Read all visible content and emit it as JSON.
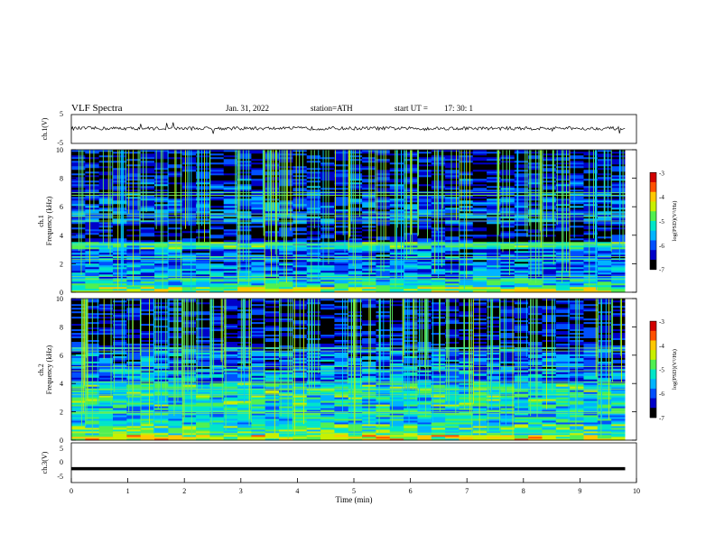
{
  "header": {
    "title": "VLF  Spectra",
    "date": "Jan. 31, 2022",
    "station": "station=ATH",
    "start_label": "start  UT  =",
    "start_time": "17: 30: 1"
  },
  "chart_data": [
    {
      "type": "line",
      "name": "ch1-waveform",
      "ylabel": "ch.1(V)",
      "ylim": [
        -5,
        5
      ],
      "xlim": [
        0,
        10
      ],
      "yticks": [
        "5",
        "-5"
      ],
      "baseline": 0.2,
      "amplitude": 0.6,
      "x": [
        0,
        1,
        2,
        3,
        4,
        5,
        6,
        7,
        8,
        9,
        9.8
      ],
      "y": [
        0.3,
        0.2,
        0.1,
        0.2,
        0.3,
        0.2,
        0.1,
        0.2,
        0.2,
        0.1,
        0.3
      ]
    },
    {
      "type": "heatmap",
      "name": "ch1-spectrogram",
      "ylabel": "ch.1\nFrequency  (kHz)",
      "ylim": [
        0,
        10
      ],
      "xlim": [
        0,
        10
      ],
      "data_xmax": 9.8,
      "yticks": [
        "0",
        "2",
        "4",
        "6",
        "8",
        "10"
      ],
      "colorbar": {
        "label": "log(PSD)(V²/Hz)",
        "range": [
          -7,
          -3
        ],
        "ticks": [
          "-3",
          "-4",
          "-5",
          "-6",
          "-7"
        ]
      },
      "bands": [
        {
          "f0": 0.0,
          "f1": 0.4,
          "level": -4.6
        },
        {
          "f0": 0.4,
          "f1": 1.0,
          "level": -5.3
        },
        {
          "f0": 1.0,
          "f1": 2.0,
          "level": -5.8
        },
        {
          "f0": 2.0,
          "f1": 3.0,
          "level": -6.0
        },
        {
          "f0": 3.0,
          "f1": 3.6,
          "level": -5.2
        },
        {
          "f0": 3.6,
          "f1": 4.8,
          "level": -6.6
        },
        {
          "f0": 4.8,
          "f1": 6.6,
          "level": -6.1
        },
        {
          "f0": 6.6,
          "f1": 8.0,
          "level": -6.4
        },
        {
          "f0": 8.0,
          "f1": 10.0,
          "level": -6.5
        }
      ],
      "lines_khz": [
        0.9,
        1.1,
        2.3,
        2.5,
        3.3,
        3.4,
        5.0,
        5.3,
        5.5,
        6.8,
        7.0
      ]
    },
    {
      "type": "heatmap",
      "name": "ch2-spectrogram",
      "ylabel": "ch.2\nFrequency  (kHz)",
      "ylim": [
        0,
        10
      ],
      "xlim": [
        0,
        10
      ],
      "data_xmax": 9.8,
      "yticks": [
        "0",
        "2",
        "4",
        "6",
        "8",
        "10"
      ],
      "colorbar": {
        "label": "log(PSD)(V²/Hz)",
        "range": [
          -7,
          -3
        ],
        "ticks": [
          "-3",
          "-4",
          "-5",
          "-6",
          "-7"
        ]
      },
      "bands": [
        {
          "f0": 0.0,
          "f1": 0.4,
          "level": -4.4
        },
        {
          "f0": 0.4,
          "f1": 1.2,
          "level": -5.0
        },
        {
          "f0": 1.2,
          "f1": 2.4,
          "level": -5.4
        },
        {
          "f0": 2.4,
          "f1": 4.0,
          "level": -5.2
        },
        {
          "f0": 4.0,
          "f1": 5.0,
          "level": -5.8
        },
        {
          "f0": 5.0,
          "f1": 6.6,
          "level": -6.0
        },
        {
          "f0": 6.6,
          "f1": 8.0,
          "level": -6.5
        },
        {
          "f0": 8.0,
          "f1": 10.0,
          "level": -6.6
        }
      ],
      "lines_khz": [
        0.5,
        1.9,
        2.0,
        3.2,
        3.6,
        4.1,
        4.9,
        5.2,
        6.3,
        6.5
      ]
    },
    {
      "type": "line",
      "name": "ch3-waveform",
      "ylabel": "ch.3(V)",
      "ylim": [
        -5,
        5
      ],
      "xlim": [
        0,
        10
      ],
      "yticks": [
        "5",
        "0",
        "-5"
      ],
      "xlabel": "Time  (min)",
      "xticks": [
        "0",
        "1",
        "2",
        "3",
        "4",
        "5",
        "6",
        "7",
        "8",
        "9",
        "10"
      ],
      "x": [
        0,
        9.8
      ],
      "y": [
        -1.5,
        -1.5
      ]
    }
  ],
  "colors": {
    "axis": "#000000",
    "colormap": [
      "#000000",
      "#0000c8",
      "#0050ff",
      "#00b4ff",
      "#00e6c8",
      "#50f050",
      "#c8f000",
      "#ffc800",
      "#ff5000",
      "#d20000",
      "#ffffff"
    ]
  }
}
